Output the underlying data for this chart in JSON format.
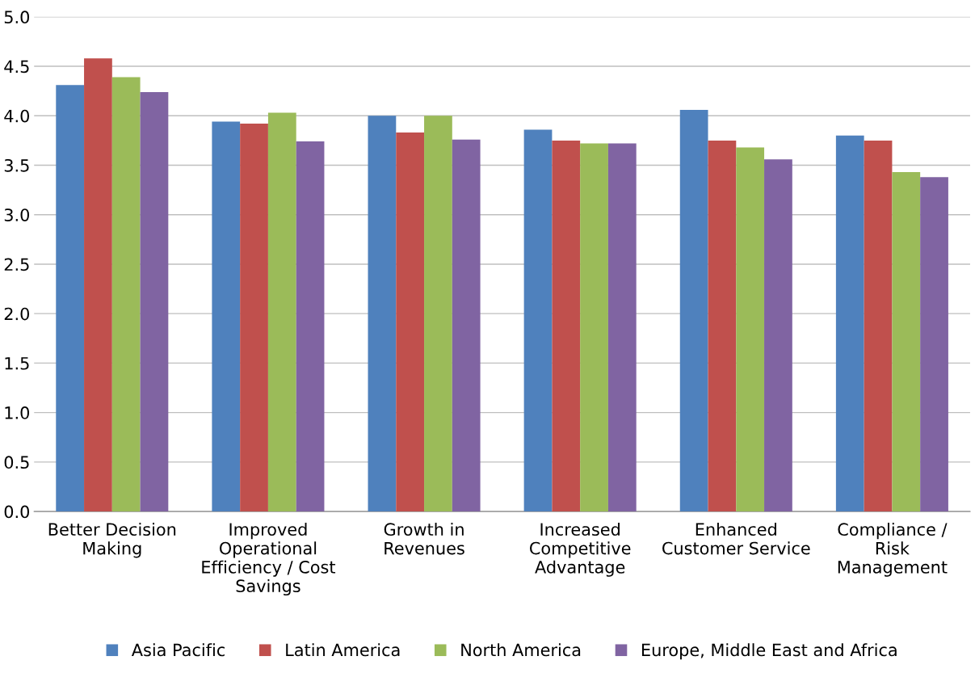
{
  "chart_data": {
    "type": "bar",
    "categories": [
      "Better Decision\nMaking",
      "Improved\nOperational\nEfficiency / Cost\nSavings",
      "Growth in\nRevenues",
      "Increased\nCompetitive\nAdvantage",
      "Enhanced\nCustomer Service",
      "Compliance /\nRisk\nManagement"
    ],
    "series": [
      {
        "name": "Asia Pacific",
        "color": "#4f81bd",
        "values": [
          4.31,
          3.94,
          4.0,
          3.86,
          4.06,
          3.8
        ]
      },
      {
        "name": "Latin America",
        "color": "#c0504d",
        "values": [
          4.58,
          3.92,
          3.83,
          3.75,
          3.75,
          3.75
        ]
      },
      {
        "name": "North America",
        "color": "#9bbb59",
        "values": [
          4.39,
          4.03,
          4.0,
          3.72,
          3.68,
          3.43
        ]
      },
      {
        "name": "Europe, Middle East and Africa",
        "color": "#8064a2",
        "values": [
          4.24,
          3.74,
          3.76,
          3.72,
          3.56,
          3.38
        ]
      }
    ],
    "ylim": [
      0,
      5
    ],
    "yticks": [
      {
        "value": 0,
        "label": "0.0"
      },
      {
        "value": 0.5,
        "label": "0.5"
      },
      {
        "value": 1,
        "label": "1.0"
      },
      {
        "value": 1.5,
        "label": "1.5"
      },
      {
        "value": 2,
        "label": "2.0"
      },
      {
        "value": 2.5,
        "label": "2.5"
      },
      {
        "value": 3,
        "label": "3.0"
      },
      {
        "value": 3.5,
        "label": "3.5"
      },
      {
        "value": 4,
        "label": "4.0"
      },
      {
        "value": 4.5,
        "label": "4.5"
      },
      {
        "value": 5,
        "label": "5.0"
      }
    ],
    "grid": "y",
    "legend": "bottom"
  }
}
